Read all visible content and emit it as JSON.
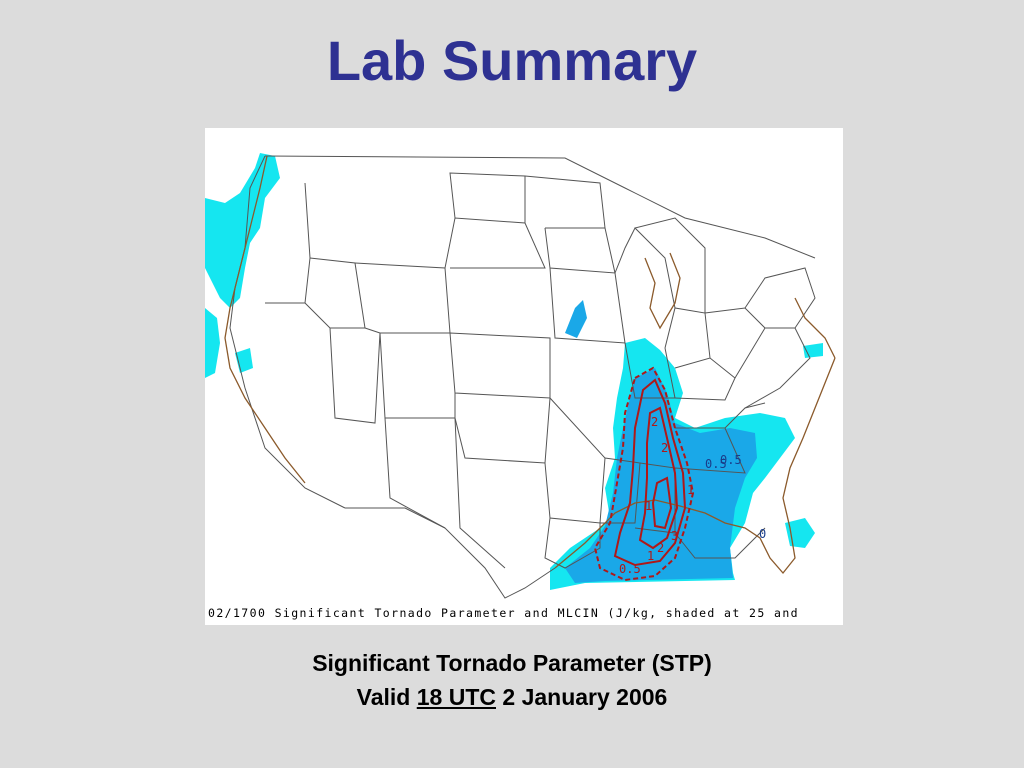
{
  "slide": {
    "title": "Lab Summary",
    "caption_line1": "Significant Tornado Parameter (STP)",
    "caption_valid": "Valid",
    "caption_time": "18 UTC",
    "caption_date": "2 January 2006"
  },
  "map": {
    "footer_text": "02/1700 Significant Tornado Parameter and MLCIN (J/kg, shaded at 25 and",
    "contour_labels": [
      "2",
      "2",
      "0.5",
      "1",
      "1",
      "2",
      "3",
      "1",
      "0.5",
      "0.5",
      "0"
    ],
    "colors": {
      "cin_light": "#15e6f0",
      "cin_medium": "#1aa8e8",
      "stp_contour": "#b01818",
      "coast": "#8b5a2b",
      "borders": "#555555"
    }
  }
}
